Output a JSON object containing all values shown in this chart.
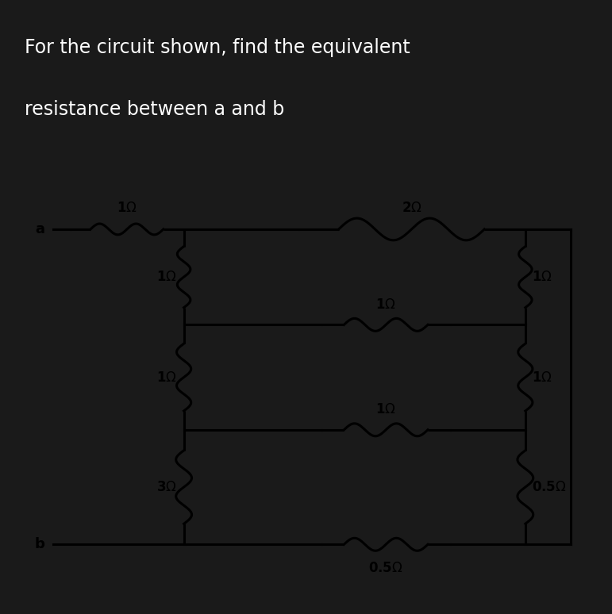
{
  "title_line1": "For the circuit shown, find the equivalent",
  "title_line2": "resistance between a and b",
  "bg_color": "#1a1a1a",
  "circuit_bg": "#b8b8b8",
  "wire_color": "#000000",
  "text_color": "#ffffff",
  "circuit_text_color": "#000000",
  "title_fontsize": 17,
  "label_fontsize": 13,
  "res_label_fontsize": 12,
  "lw": 2.2
}
